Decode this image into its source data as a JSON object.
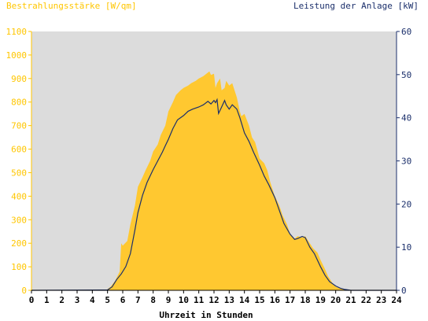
{
  "chart_data": {
    "type": "area",
    "title_left": "Bestrahlungsstärke [W/qm]",
    "title_right": "Leistung der Anlage [kW]",
    "xlabel": "Uhrzeit in Stunden",
    "xlim": [
      0,
      24
    ],
    "x_ticks": [
      "0",
      "1",
      "2",
      "3",
      "4",
      "5",
      "6",
      "7",
      "8",
      "9",
      "10",
      "11",
      "12",
      "13",
      "14",
      "15",
      "16",
      "17",
      "18",
      "19",
      "20",
      "21",
      "22",
      "23",
      "24"
    ],
    "ylim_left": [
      0,
      1100
    ],
    "y_ticks_left": [
      "0",
      "100",
      "200",
      "300",
      "400",
      "500",
      "600",
      "700",
      "800",
      "900",
      "1000",
      "1100"
    ],
    "ylim_right": [
      0,
      60
    ],
    "y_ticks_right": [
      "0",
      "10",
      "20",
      "30",
      "40",
      "50",
      "60"
    ],
    "grid": false,
    "colors": {
      "irradiance": "#FFC830",
      "power": "#1B2F6B",
      "plot_background": "#DCDCDC",
      "left_text": "#FFC600",
      "right_text": "#1B2F6B"
    },
    "series": [
      {
        "axis": "left",
        "style": "area",
        "x": [
          0,
          4.9,
          5.2,
          5.5,
          5.8,
          5.9,
          6.0,
          6.3,
          6.5,
          6.8,
          7.0,
          7.3,
          7.5,
          7.8,
          8.0,
          8.3,
          8.5,
          8.8,
          9.0,
          9.3,
          9.5,
          9.8,
          10.0,
          10.3,
          10.5,
          10.8,
          11.0,
          11.3,
          11.5,
          11.7,
          11.8,
          12.0,
          12.1,
          12.2,
          12.4,
          12.5,
          12.7,
          12.8,
          13.0,
          13.2,
          13.5,
          13.7,
          13.8,
          14.0,
          14.3,
          14.5,
          14.7,
          15.0,
          15.3,
          15.5,
          15.7,
          16.0,
          16.3,
          16.5,
          16.8,
          17.0,
          17.3,
          17.5,
          17.8,
          18.0,
          18.3,
          18.5,
          18.8,
          19.0,
          19.3,
          19.5,
          19.8,
          20.0,
          20.3,
          20.6,
          21.0,
          24
        ],
        "y": [
          0,
          0,
          15,
          40,
          80,
          200,
          190,
          210,
          280,
          360,
          440,
          480,
          510,
          550,
          590,
          620,
          660,
          700,
          760,
          800,
          830,
          850,
          860,
          870,
          880,
          890,
          900,
          910,
          920,
          930,
          915,
          920,
          860,
          880,
          900,
          850,
          860,
          890,
          870,
          880,
          820,
          760,
          740,
          750,
          700,
          650,
          630,
          560,
          540,
          510,
          460,
          400,
          360,
          320,
          280,
          240,
          220,
          230,
          225,
          230,
          200,
          180,
          160,
          130,
          90,
          60,
          30,
          15,
          8,
          3,
          0,
          0
        ]
      },
      {
        "axis": "right",
        "style": "line",
        "x": [
          0,
          5.0,
          5.3,
          5.6,
          5.9,
          6.2,
          6.5,
          6.8,
          7.0,
          7.3,
          7.6,
          8.0,
          8.3,
          8.6,
          8.8,
          9.0,
          9.3,
          9.6,
          10.0,
          10.3,
          10.6,
          11.0,
          11.3,
          11.6,
          11.8,
          12.0,
          12.1,
          12.2,
          12.3,
          12.5,
          12.7,
          12.8,
          13.0,
          13.2,
          13.5,
          13.7,
          14.0,
          14.3,
          14.6,
          15.0,
          15.3,
          15.6,
          16.0,
          16.3,
          16.6,
          17.0,
          17.3,
          17.5,
          17.8,
          18.0,
          18.3,
          18.6,
          19.0,
          19.3,
          19.6,
          20.0,
          20.3,
          20.6,
          21.0,
          24
        ],
        "y": [
          0,
          0.1,
          0.8,
          2.5,
          3.8,
          5.5,
          8.5,
          14.0,
          18.0,
          22.0,
          25.0,
          28.0,
          30.0,
          32.0,
          33.5,
          35.0,
          37.5,
          39.5,
          40.5,
          41.5,
          42.0,
          42.5,
          43.0,
          43.8,
          43.2,
          44.0,
          43.5,
          44.2,
          41.0,
          42.5,
          44.0,
          43.0,
          42.0,
          43.0,
          42.0,
          40.0,
          36.5,
          34.5,
          32.0,
          29.0,
          26.5,
          24.5,
          21.5,
          18.5,
          15.5,
          13.0,
          11.8,
          12.0,
          12.5,
          12.2,
          10.0,
          8.5,
          5.5,
          3.5,
          2.0,
          1.0,
          0.5,
          0.2,
          0,
          0
        ]
      }
    ]
  }
}
